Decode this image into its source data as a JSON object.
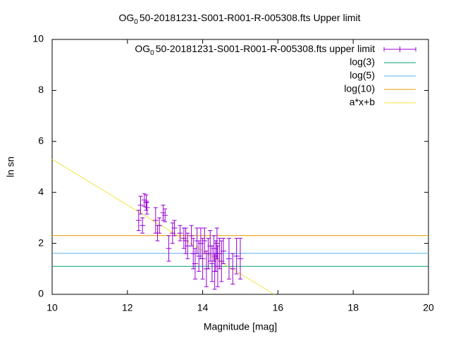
{
  "chart_data": {
    "type": "scatter",
    "title": {
      "main": "OG",
      "sub": "0",
      "rest": "50-20181231-S001-R001-R-005308.fts Upper limit"
    },
    "xlabel": "Magnitude [mag]",
    "ylabel": "ln sn",
    "xlim": [
      10,
      20
    ],
    "xticks": [
      10,
      12,
      14,
      16,
      18,
      20
    ],
    "ylim": [
      0,
      10
    ],
    "yticks": [
      0,
      2,
      4,
      6,
      8,
      10
    ],
    "series": [
      {
        "name": {
          "main": "OG",
          "sub": "0",
          "rest": "50-20181231-S001-R001-R-005308.fts upper limit"
        },
        "color": "#9400d3",
        "x": [
          12.3,
          12.35,
          12.4,
          12.45,
          12.5,
          12.52,
          12.75,
          12.8,
          12.85,
          12.95,
          13.0,
          13.1,
          13.2,
          13.25,
          13.4,
          13.5,
          13.55,
          13.6,
          13.7,
          13.75,
          13.8,
          13.85,
          13.9,
          13.95,
          14.0,
          14.05,
          14.1,
          14.15,
          14.2,
          14.25,
          14.3,
          14.32,
          14.35,
          14.38,
          14.4,
          14.45,
          14.5,
          14.55,
          14.7,
          14.8,
          14.9,
          15.0
        ],
        "values": [
          2.9,
          3.5,
          2.7,
          3.7,
          3.6,
          3.4,
          2.9,
          2.4,
          2.7,
          3.2,
          3.1,
          1.8,
          2.4,
          2.6,
          2.4,
          2.2,
          2.1,
          1.9,
          2.3,
          1.6,
          1.2,
          2.1,
          1.5,
          2.0,
          1.4,
          2.1,
          1.0,
          1.6,
          1.9,
          1.2,
          1.8,
          0.9,
          1.5,
          2.0,
          1.1,
          1.6,
          1.3,
          1.7,
          1.4,
          1.0,
          1.5,
          1.4
        ],
        "errors": [
          0.4,
          0.35,
          0.3,
          0.25,
          0.3,
          0.25,
          0.5,
          0.3,
          0.3,
          0.3,
          0.25,
          0.5,
          0.4,
          0.3,
          0.3,
          0.4,
          0.5,
          0.5,
          0.4,
          0.6,
          0.6,
          0.5,
          0.6,
          0.6,
          0.8,
          0.5,
          0.7,
          0.6,
          0.6,
          0.7,
          0.5,
          0.7,
          0.6,
          0.6,
          0.8,
          0.6,
          0.8,
          0.5,
          0.8,
          0.6,
          0.7,
          0.8
        ]
      }
    ],
    "hlines": [
      {
        "name": "log(3)",
        "color": "#009e73",
        "value": 1.0986
      },
      {
        "name": "log(5)",
        "color": "#56b4e9",
        "value": 1.6094
      },
      {
        "name": "log(10)",
        "color": "#e69f00",
        "value": 2.3026
      }
    ],
    "fit": {
      "name": "a*x+b",
      "color": "#f0e442",
      "x": [
        10,
        15.9
      ],
      "values": [
        5.3,
        0
      ]
    }
  }
}
